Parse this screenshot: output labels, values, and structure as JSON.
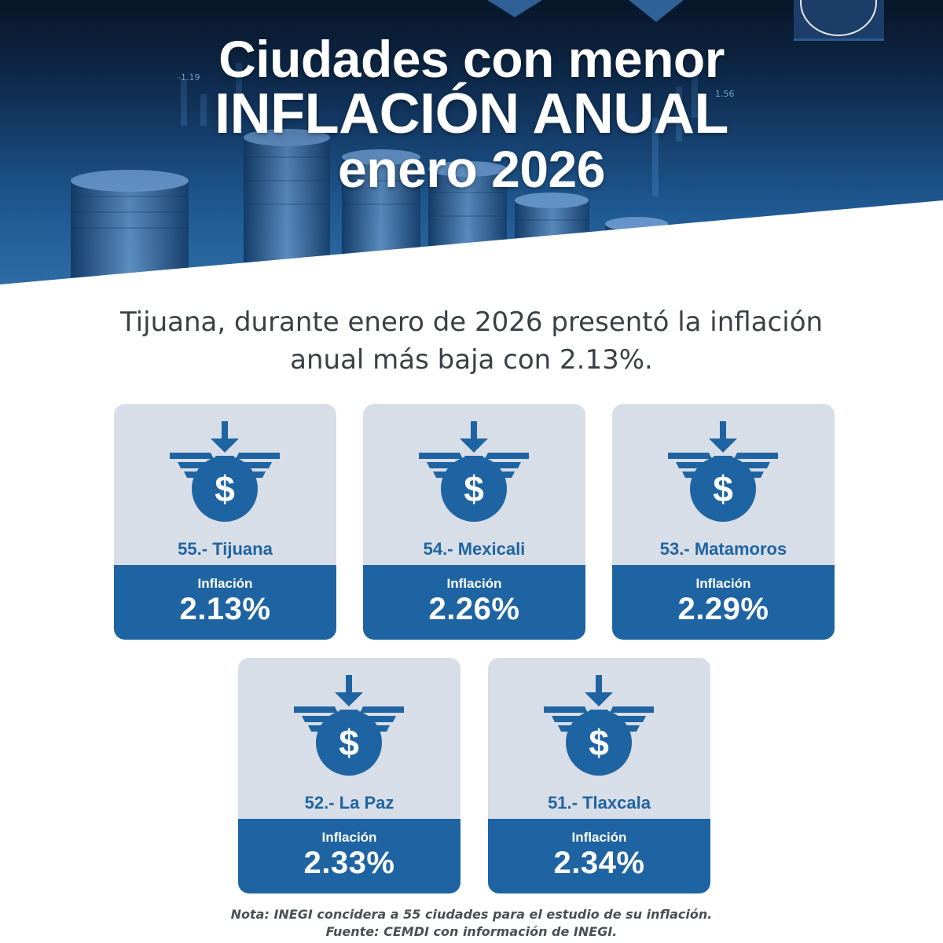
{
  "hero": {
    "title_line1": "Ciudades con menor",
    "title_line2": "INFLACIÓN ANUAL",
    "title_line3": "enero 2026",
    "ticker_left": "-1.19",
    "ticker_right": "1.56"
  },
  "subtitle": {
    "line1": "Tijuana, durante enero de 2026 presentó la inflación",
    "line2": "anual más baja con 2.13%."
  },
  "colors": {
    "primary": "#1f64a2",
    "card_bg": "#d8dee7",
    "text_dark": "#3b3f46"
  },
  "cards": [
    {
      "city": "55.- Tijuana",
      "label": "Inflación",
      "value": "2.13%"
    },
    {
      "city": "54.- Mexicali",
      "label": "Inflación",
      "value": "2.26%"
    },
    {
      "city": "53.- Matamoros",
      "label": "Inflación",
      "value": "2.29%"
    },
    {
      "city": "52.- La Paz",
      "label": "Inflación",
      "value": "2.33%"
    },
    {
      "city": "51.- Tlaxcala",
      "label": "Inflación",
      "value": "2.34%"
    }
  ],
  "icons": {
    "card_icon": "money-bag-down-arrow-icon"
  },
  "footer": {
    "note": "Nota: INEGI concidera a 55 ciudades para el estudio de su inflación.",
    "source": "Fuente: CEMDI con información de INEGI."
  }
}
